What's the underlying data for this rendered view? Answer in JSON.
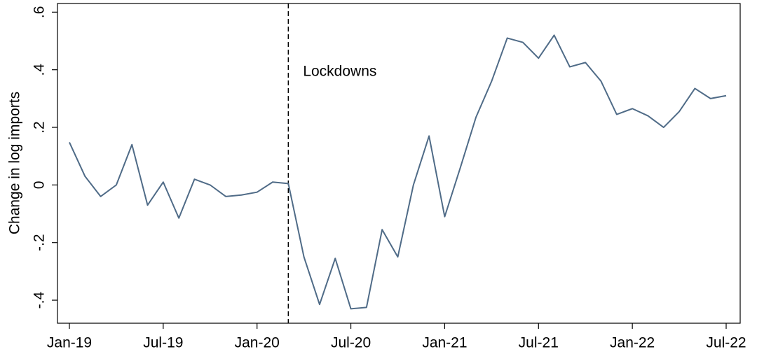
{
  "chart_data": {
    "type": "line",
    "y_label": "Change in log imports",
    "categories": [
      "Jan-19",
      null,
      null,
      null,
      null,
      null,
      "Jul-19",
      null,
      null,
      null,
      null,
      null,
      "Jan-20",
      null,
      null,
      null,
      null,
      null,
      "Jul-20",
      null,
      null,
      null,
      null,
      null,
      "Jan-21",
      null,
      null,
      null,
      null,
      null,
      "Jul-21",
      null,
      null,
      null,
      null,
      null,
      "Jan-22",
      null,
      null,
      null,
      null,
      null,
      "Jul-22"
    ],
    "series": [
      {
        "name": "Change in log imports",
        "color": "#4f6b87",
        "values": [
          0.148,
          0.03,
          -0.04,
          0.0,
          0.14,
          -0.07,
          0.01,
          -0.115,
          0.02,
          0.0,
          -0.04,
          -0.035,
          -0.025,
          0.01,
          0.005,
          -0.25,
          -0.415,
          -0.255,
          -0.43,
          -0.425,
          -0.155,
          -0.25,
          0.0,
          0.17,
          -0.11,
          0.06,
          0.235,
          0.36,
          0.51,
          0.495,
          0.44,
          0.52,
          0.41,
          0.425,
          0.36,
          0.245,
          0.265,
          0.24,
          0.2,
          0.255,
          0.335,
          0.3,
          0.31
        ]
      }
    ],
    "ylim": [
      -0.48,
      0.63
    ],
    "yticks": [
      {
        "value": -0.4,
        "label": "-.4"
      },
      {
        "value": -0.2,
        "label": "-.2"
      },
      0,
      {
        "value": 0.2,
        "label": ".2"
      },
      {
        "value": 0.4,
        "label": ".4"
      },
      {
        "value": 0.6,
        "label": ".6"
      }
    ],
    "vline": {
      "at": 14,
      "label": "Lockdowns"
    },
    "grid": false
  }
}
